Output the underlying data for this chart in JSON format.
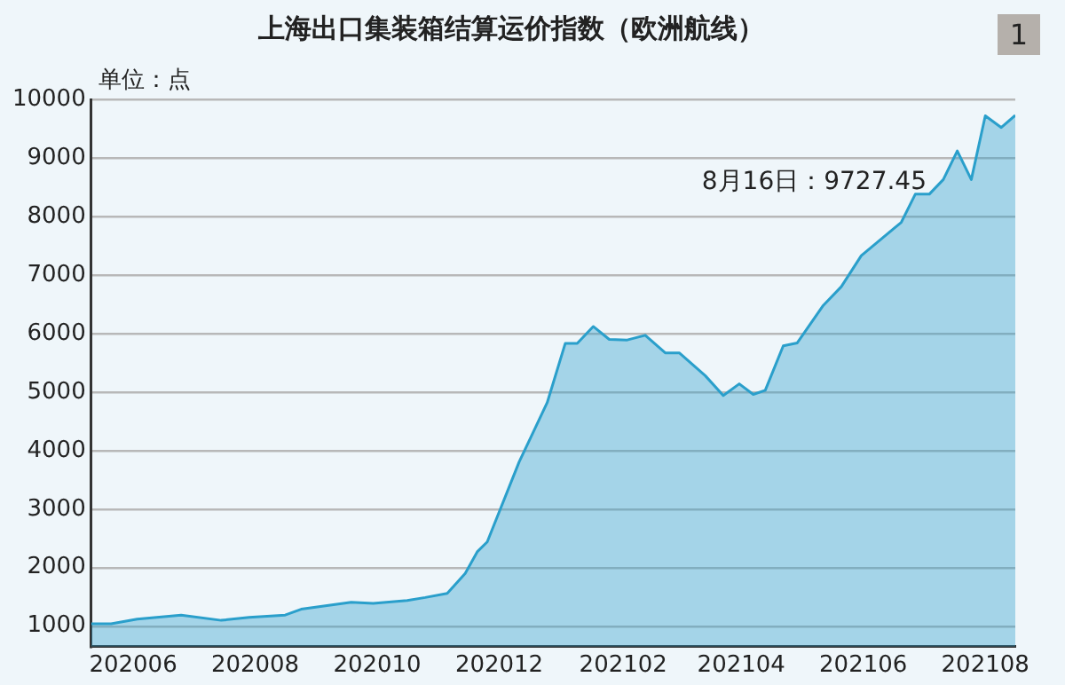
{
  "chart_data": {
    "type": "area",
    "title": "上海出口集装箱结算运价指数（欧洲航线）",
    "ylabel": "单位：点",
    "x": [
      "2020-05-11",
      "2020-05-21",
      "2020-06-03",
      "2020-06-25",
      "2020-07-15",
      "2020-07-29",
      "2020-08-16",
      "2020-08-24",
      "2020-09-18",
      "2020-09-29",
      "2020-10-16",
      "2020-10-25",
      "2020-11-05",
      "2020-11-14",
      "2020-11-20",
      "2020-11-25",
      "2020-12-11",
      "2020-12-17",
      "2020-12-25",
      "2021-01-03",
      "2021-01-09",
      "2021-01-17",
      "2021-01-25",
      "2021-02-03",
      "2021-02-12",
      "2021-02-22",
      "2021-03-01",
      "2021-03-14",
      "2021-03-23",
      "2021-03-31",
      "2021-04-07",
      "2021-04-13",
      "2021-04-22",
      "2021-04-29",
      "2021-05-12",
      "2021-05-21",
      "2021-05-31",
      "2021-06-20",
      "2021-06-27",
      "2021-07-04",
      "2021-07-11",
      "2021-07-18",
      "2021-07-25",
      "2021-08-01",
      "2021-08-09",
      "2021-08-16"
    ],
    "series": [
      {
        "color": "#2a9fcb",
        "values": [
          1040,
          1040,
          1120,
          1190,
          1100,
          1150,
          1190,
          1290,
          1410,
          1390,
          1440,
          1490,
          1560,
          1900,
          2270,
          2440,
          3810,
          4240,
          4820,
          5830,
          5830,
          6120,
          5900,
          5890,
          5970,
          5670,
          5670,
          5280,
          4940,
          5140,
          4960,
          5030,
          5790,
          5840,
          6480,
          6800,
          7330,
          7900,
          8380,
          8380,
          8630,
          9120,
          8630,
          9720,
          9520,
          9727.45
        ]
      }
    ],
    "xlim": [
      "2020-05-11",
      "2021-08-16"
    ],
    "xticks": [
      {
        "value": "2020-06",
        "label": "202006"
      },
      {
        "value": "2020-08",
        "label": "202008"
      },
      {
        "value": "2020-10",
        "label": "202010"
      },
      {
        "value": "2020-12",
        "label": "202012"
      },
      {
        "value": "2021-02",
        "label": "202102"
      },
      {
        "value": "2021-04",
        "label": "202104"
      },
      {
        "value": "2021-06",
        "label": "202106"
      },
      {
        "value": "2021-08",
        "label": "202108"
      }
    ],
    "ylim": [
      650,
      10000
    ],
    "yticks": [
      1000,
      2000,
      3000,
      4000,
      5000,
      6000,
      7000,
      8000,
      9000,
      10000
    ],
    "grid": "y",
    "legend": false,
    "annotations": [
      "8月16日：9727.45",
      "1"
    ]
  }
}
